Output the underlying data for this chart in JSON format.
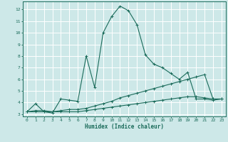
{
  "xlabel": "Humidex (Indice chaleur)",
  "bg_color": "#cde8e8",
  "grid_color": "#ffffff",
  "line_color": "#1a6b5a",
  "xlim": [
    -0.5,
    23.5
  ],
  "ylim": [
    2.8,
    12.7
  ],
  "xticks": [
    0,
    1,
    2,
    3,
    4,
    5,
    6,
    7,
    8,
    9,
    10,
    11,
    12,
    13,
    14,
    15,
    16,
    17,
    18,
    19,
    20,
    21,
    22,
    23
  ],
  "yticks": [
    3,
    4,
    5,
    6,
    7,
    8,
    9,
    10,
    11,
    12
  ],
  "series1_x": [
    0,
    1,
    2,
    3,
    4,
    5,
    6,
    7,
    8,
    9,
    10,
    11,
    12,
    13,
    14,
    15,
    16,
    17,
    18,
    19,
    20,
    21,
    22,
    23
  ],
  "series1_y": [
    3.2,
    3.9,
    3.2,
    3.1,
    4.3,
    4.2,
    4.1,
    8.0,
    5.3,
    10.0,
    11.4,
    12.3,
    11.9,
    10.7,
    8.1,
    7.3,
    7.0,
    6.5,
    6.0,
    6.6,
    4.3,
    4.3,
    4.2,
    4.3
  ],
  "series2_x": [
    0,
    1,
    2,
    3,
    4,
    5,
    6,
    7,
    8,
    9,
    10,
    11,
    12,
    13,
    14,
    15,
    16,
    17,
    18,
    19,
    20,
    21,
    22,
    23
  ],
  "series2_y": [
    3.2,
    3.3,
    3.3,
    3.2,
    3.3,
    3.4,
    3.4,
    3.5,
    3.7,
    3.9,
    4.1,
    4.4,
    4.6,
    4.8,
    5.0,
    5.2,
    5.4,
    5.6,
    5.8,
    6.0,
    6.2,
    6.4,
    4.3,
    4.3
  ],
  "series3_x": [
    0,
    1,
    2,
    3,
    4,
    5,
    6,
    7,
    8,
    9,
    10,
    11,
    12,
    13,
    14,
    15,
    16,
    17,
    18,
    19,
    20,
    21,
    22,
    23
  ],
  "series3_y": [
    3.2,
    3.2,
    3.2,
    3.2,
    3.2,
    3.2,
    3.2,
    3.3,
    3.4,
    3.5,
    3.6,
    3.7,
    3.8,
    3.9,
    4.0,
    4.1,
    4.2,
    4.3,
    4.4,
    4.5,
    4.5,
    4.4,
    4.3,
    4.3
  ]
}
